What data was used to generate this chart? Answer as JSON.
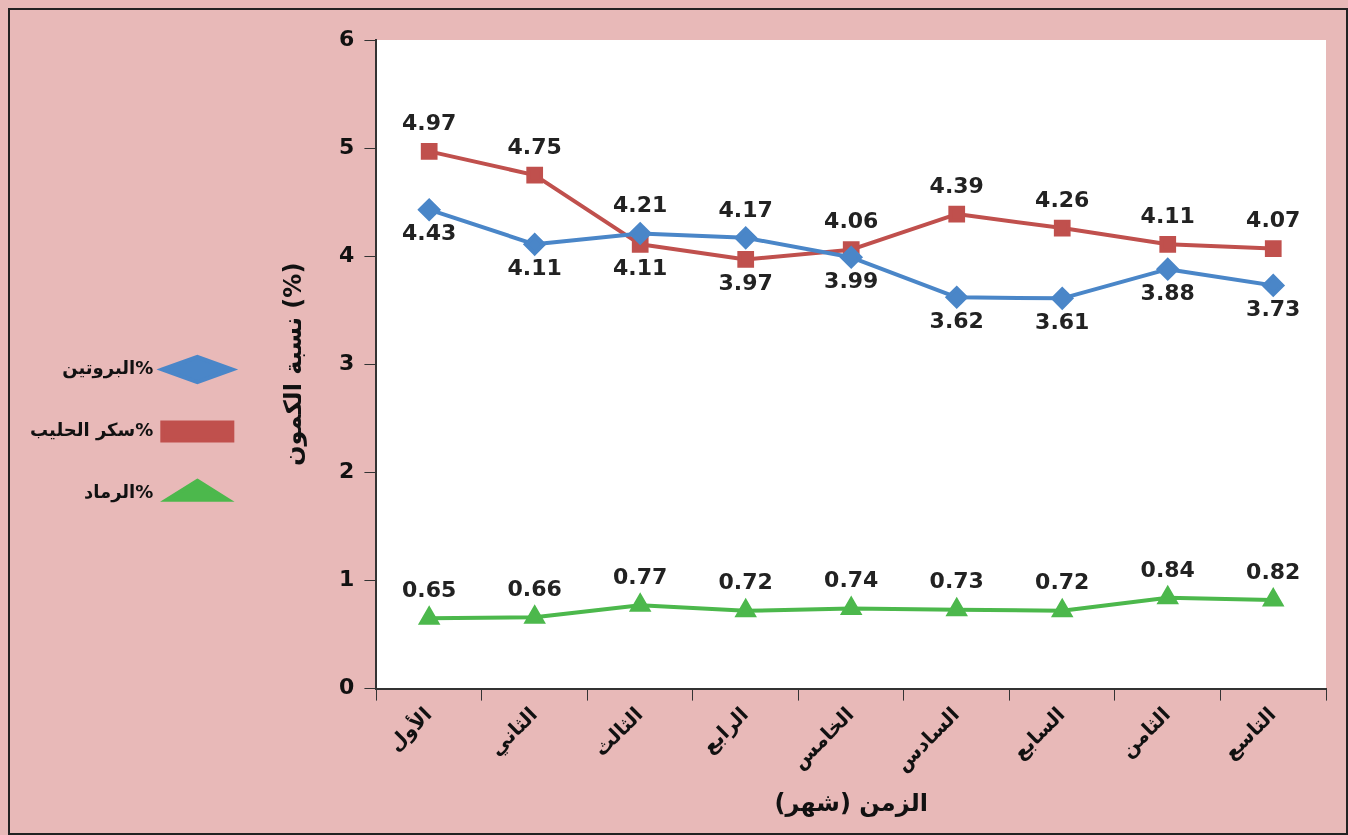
{
  "chart_data": {
    "type": "line",
    "xlabel": "الزمن (شهر)",
    "ylabel": "نسبة الكمون (%)",
    "categories": [
      "الأول",
      "الثاني",
      "الثالث",
      "الرابع",
      "الخامس",
      "السادس",
      "السابع",
      "الثامن",
      "التاسع"
    ],
    "series": [
      {
        "name": "البروتين%",
        "color": "#4a86c8",
        "marker": "diamond",
        "values": [
          4.43,
          4.11,
          4.21,
          4.17,
          3.99,
          3.62,
          3.61,
          3.88,
          3.73
        ]
      },
      {
        "name": "سكر الحليب%",
        "color": "#c0504d",
        "marker": "square",
        "values": [
          4.97,
          4.75,
          4.11,
          3.97,
          4.06,
          4.39,
          4.26,
          4.11,
          4.07
        ]
      },
      {
        "name": "الرماد%",
        "color": "#4cb84c",
        "marker": "triangle",
        "values": [
          0.65,
          0.66,
          0.77,
          0.72,
          0.74,
          0.73,
          0.72,
          0.84,
          0.82
        ]
      }
    ],
    "ylim": [
      0,
      6
    ],
    "yticks": [
      0,
      1,
      2,
      3,
      4,
      5,
      6
    ],
    "grid": false,
    "legend": "left",
    "data_labels": true,
    "line_style": "solid"
  }
}
